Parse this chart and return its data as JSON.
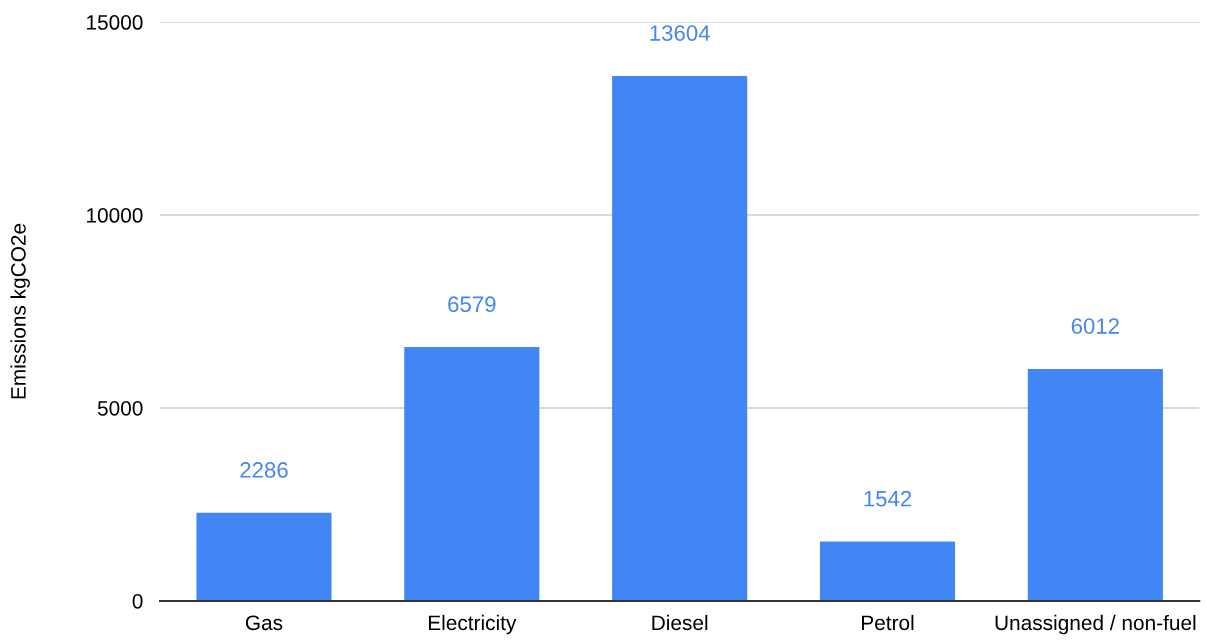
{
  "chart_data": {
    "type": "bar",
    "ylabel": "Emissions kgCO2e",
    "categories": [
      "Gas",
      "Electricity",
      "Diesel",
      "Petrol",
      "Unassigned / non-fuel"
    ],
    "values": [
      2286,
      6579,
      13604,
      1542,
      6012
    ],
    "color": "#4285f4",
    "ylim": [
      0,
      15000
    ],
    "yticks": [
      0,
      5000,
      10000,
      15000
    ],
    "grid": "y",
    "data_labels": true,
    "legend": false
  }
}
